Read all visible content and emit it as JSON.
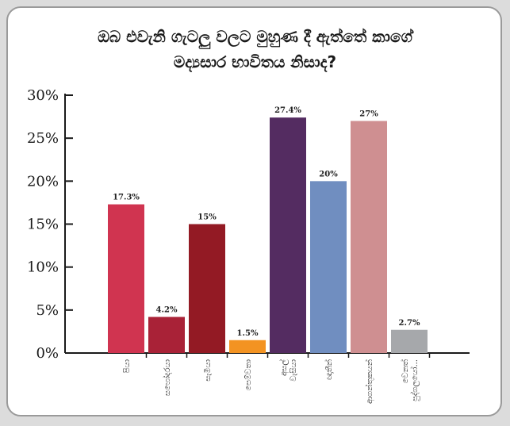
{
  "title_lines": [
    "ඔබ එවැනි ගැටලු වලට මුහුණ දී ඇත්තේ කාගේ",
    "මද්‍යසාර භාවිතය නිසාද?"
  ],
  "chart_data": {
    "type": "bar",
    "title": "ඔබ එවැනි ගැටලු වලට මුහුණ දී ඇත්තේ කාගේ මද්‍යසාර භාවිතය නිසාද?",
    "categories": [
      "පියා",
      "සහෝදරයා",
      "සැමියා",
      "පෙම්වතා",
      "අසල් වැසියා",
      "ඥාතීන්",
      "ආගන්තුකයන්",
      "වෙනත් පුද්ගලයෝ..."
    ],
    "values": [
      17.3,
      4.2,
      15,
      1.5,
      27.4,
      20,
      27,
      2.7
    ],
    "data_labels": [
      "17.3%",
      "4.2%",
      "15%",
      "1.5%",
      "27.4%",
      "20%",
      "27%",
      "2.7%"
    ],
    "colors": [
      "#d03450",
      "#a92237",
      "#931a24",
      "#f39322",
      "#542c61",
      "#708ec0",
      "#cf8f91",
      "#a6a8ab"
    ],
    "ylim": [
      0,
      30
    ],
    "yticks": [
      "0%",
      "5%",
      "10%",
      "15%",
      "20%",
      "25%",
      "30%"
    ],
    "xlabel": "",
    "ylabel": "",
    "grid": false,
    "legend": "none"
  }
}
